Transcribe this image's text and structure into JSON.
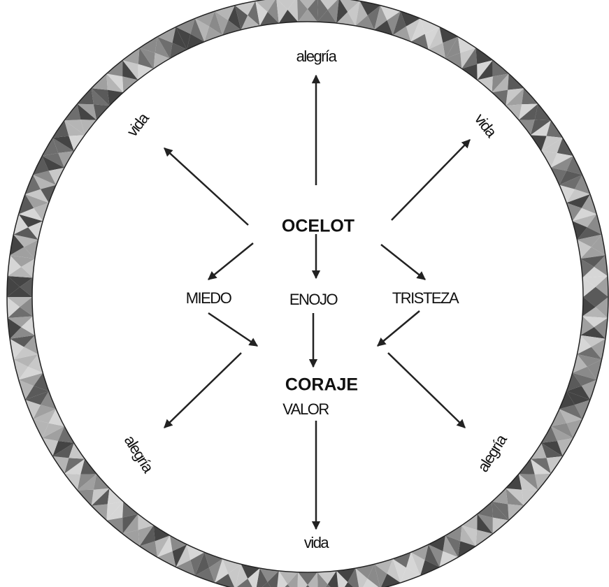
{
  "nodes": [
    {
      "label": "alegría"
    },
    {
      "label": "vida"
    },
    {
      "label": "vida"
    },
    {
      "label": "OCELOT"
    },
    {
      "label": "MIEDO"
    },
    {
      "label": "ENOJO"
    },
    {
      "label": "TRISTEZA"
    },
    {
      "label": "CORAJE"
    },
    {
      "label": "VALOR"
    },
    {
      "label": "alegría"
    },
    {
      "label": "alegría"
    },
    {
      "label": "vida"
    }
  ]
}
